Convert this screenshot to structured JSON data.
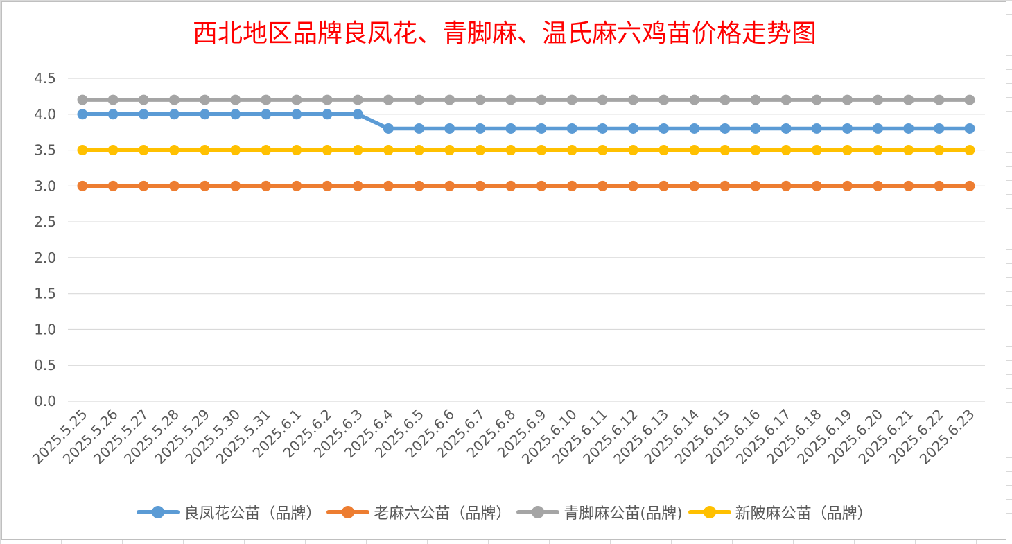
{
  "chart_data": {
    "type": "line",
    "title": "西北地区品牌良凤花、青脚麻、温氏麻六鸡苗价格走势图",
    "xlabel": "",
    "ylabel": "",
    "ylim": [
      0,
      4.5
    ],
    "yticks": [
      "0.0",
      "0.5",
      "1.0",
      "1.5",
      "2.0",
      "2.5",
      "3.0",
      "3.5",
      "4.0",
      "4.5"
    ],
    "grid": true,
    "legend_position": "bottom",
    "categories": [
      "2025.5.25",
      "2025.5.26",
      "2025.5.27",
      "2025.5.28",
      "2025.5.29",
      "2025.5.30",
      "2025.5.31",
      "2025.6.1",
      "2025.6.2",
      "2025.6.3",
      "2025.6.4",
      "2025.6.5",
      "2025.6.6",
      "2025.6.7",
      "2025.6.8",
      "2025.6.9",
      "2025.6.10",
      "2025.6.11",
      "2025.6.12",
      "2025.6.13",
      "2025.6.14",
      "2025.6.15",
      "2025.6.16",
      "2025.6.17",
      "2025.6.18",
      "2025.6.19",
      "2025.6.20",
      "2025.6.21",
      "2025.6.22",
      "2025.6.23"
    ],
    "series": [
      {
        "name": "良凤花公苗（品牌）",
        "color": "#5b9bd5",
        "values": [
          4.0,
          4.0,
          4.0,
          4.0,
          4.0,
          4.0,
          4.0,
          4.0,
          4.0,
          4.0,
          3.8,
          3.8,
          3.8,
          3.8,
          3.8,
          3.8,
          3.8,
          3.8,
          3.8,
          3.8,
          3.8,
          3.8,
          3.8,
          3.8,
          3.8,
          3.8,
          3.8,
          3.8,
          3.8,
          3.8
        ]
      },
      {
        "name": "老麻六公苗（品牌）",
        "color": "#ed7d31",
        "values": [
          3.0,
          3.0,
          3.0,
          3.0,
          3.0,
          3.0,
          3.0,
          3.0,
          3.0,
          3.0,
          3.0,
          3.0,
          3.0,
          3.0,
          3.0,
          3.0,
          3.0,
          3.0,
          3.0,
          3.0,
          3.0,
          3.0,
          3.0,
          3.0,
          3.0,
          3.0,
          3.0,
          3.0,
          3.0,
          3.0
        ]
      },
      {
        "name": "青脚麻公苗(品牌)",
        "color": "#a5a5a5",
        "values": [
          4.2,
          4.2,
          4.2,
          4.2,
          4.2,
          4.2,
          4.2,
          4.2,
          4.2,
          4.2,
          4.2,
          4.2,
          4.2,
          4.2,
          4.2,
          4.2,
          4.2,
          4.2,
          4.2,
          4.2,
          4.2,
          4.2,
          4.2,
          4.2,
          4.2,
          4.2,
          4.2,
          4.2,
          4.2,
          4.2
        ]
      },
      {
        "name": "新陂麻公苗（品牌）",
        "color": "#ffc000",
        "values": [
          3.5,
          3.5,
          3.5,
          3.5,
          3.5,
          3.5,
          3.5,
          3.5,
          3.5,
          3.5,
          3.5,
          3.5,
          3.5,
          3.5,
          3.5,
          3.5,
          3.5,
          3.5,
          3.5,
          3.5,
          3.5,
          3.5,
          3.5,
          3.5,
          3.5,
          3.5,
          3.5,
          3.5,
          3.5,
          3.5
        ]
      }
    ]
  }
}
